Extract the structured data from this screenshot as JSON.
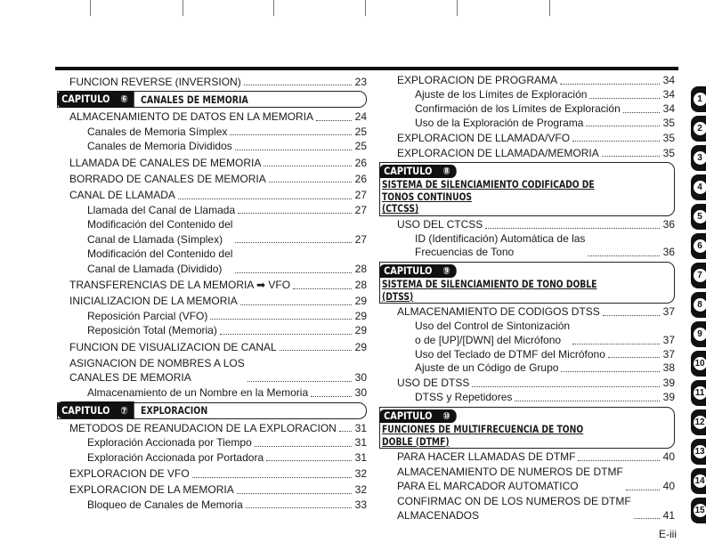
{
  "page_number": "E-iii",
  "chapter_word": "CAPITULO",
  "left": [
    {
      "k": "e",
      "lvl": 1,
      "t": "FUNCION REVERSE (INVERSION)",
      "p": "23"
    },
    {
      "k": "c",
      "n": "⑥",
      "t": "CANALES DE MEMORIA"
    },
    {
      "k": "e",
      "lvl": 1,
      "t": "ALMACENAMIENTO DE DATOS EN LA MEMORIA",
      "p": "24"
    },
    {
      "k": "e",
      "lvl": 2,
      "t": "Canales de Memoria Símplex",
      "p": "25"
    },
    {
      "k": "e",
      "lvl": 2,
      "t": "Canales de Memoria Divididos",
      "p": "25"
    },
    {
      "k": "e",
      "lvl": 1,
      "t": "LLAMADA DE CANALES DE MEMORIA",
      "p": "26"
    },
    {
      "k": "e",
      "lvl": 1,
      "t": "BORRADO DE CANALES DE MEMORIA",
      "p": "26"
    },
    {
      "k": "e",
      "lvl": 1,
      "t": "CANAL DE LLAMADA",
      "p": "27"
    },
    {
      "k": "e",
      "lvl": 2,
      "t": "Llamada del Canal de Llamada",
      "p": "27"
    },
    {
      "k": "e",
      "lvl": 2,
      "t": "Modificación del Contenido del\nCanal de Llamada (Símplex)",
      "p": "27"
    },
    {
      "k": "e",
      "lvl": 2,
      "t": "Modificación del Contenido del\nCanal de Llamada (Dividido)",
      "p": "28"
    },
    {
      "k": "e",
      "lvl": 1,
      "t": "TRANSFERENCIAS DE LA MEMORIA ➡ VFO",
      "p": "28"
    },
    {
      "k": "e",
      "lvl": 1,
      "t": "INICIALIZACION DE LA MEMORIA",
      "p": "29"
    },
    {
      "k": "e",
      "lvl": 2,
      "t": "Reposición Parcial (VFO)",
      "p": "29"
    },
    {
      "k": "e",
      "lvl": 2,
      "t": "Reposición Total (Memoria)",
      "p": "29"
    },
    {
      "k": "e",
      "lvl": 1,
      "t": "FUNCION DE VISUALIZACION DE CANAL",
      "p": "29"
    },
    {
      "k": "e",
      "lvl": 1,
      "t": "ASIGNACION DE NOMBRES A LOS\nCANALES DE MEMORIA",
      "p": "30"
    },
    {
      "k": "e",
      "lvl": 2,
      "t": "Almacenamiento de un Nombre en la Memoria",
      "p": "30"
    },
    {
      "k": "c",
      "n": "⑦",
      "t": "EXPLORACION"
    },
    {
      "k": "e",
      "lvl": 1,
      "t": "METODOS DE REANUDACION DE LA EXPLORACION",
      "p": "31"
    },
    {
      "k": "e",
      "lvl": 2,
      "t": "Exploración Accionada por Tiempo",
      "p": "31"
    },
    {
      "k": "e",
      "lvl": 2,
      "t": "Exploración Accionada por Portadora",
      "p": "31"
    },
    {
      "k": "e",
      "lvl": 1,
      "t": "EXPLORACION DE VFO",
      "p": "32"
    },
    {
      "k": "e",
      "lvl": 1,
      "t": "EXPLORACION DE LA MEMORIA",
      "p": "32"
    },
    {
      "k": "e",
      "lvl": 2,
      "t": "Bloqueo de Canales de Memoria",
      "p": "33"
    }
  ],
  "right": [
    {
      "k": "e",
      "lvl": 1,
      "t": "EXPLORACION DE PROGRAMA",
      "p": "34"
    },
    {
      "k": "e",
      "lvl": 2,
      "t": "Ajuste de los Límites de Exploración",
      "p": "34"
    },
    {
      "k": "e",
      "lvl": 2,
      "t": "Confirmación de los Límites de Exploración",
      "p": "34"
    },
    {
      "k": "e",
      "lvl": 2,
      "t": "Uso de la Exploración de Programa",
      "p": "35"
    },
    {
      "k": "e",
      "lvl": 1,
      "t": "EXPLORACION DE LLAMADA/VFO",
      "p": "35"
    },
    {
      "k": "e",
      "lvl": 1,
      "t": "EXPLORACION DE LLAMADA/MEMORIA",
      "p": "35"
    },
    {
      "k": "b",
      "n": "⑧",
      "t": "SISTEMA DE SILENCIAMIENTO CODIFICADO DE TONOS CONTINUOS\n(CTCSS)"
    },
    {
      "k": "e",
      "lvl": 1,
      "t": "USO DEL CTCSS",
      "p": "36"
    },
    {
      "k": "e",
      "lvl": 2,
      "t": "ID (Identificación) Automática de las\nFrecuencias de Tono",
      "p": "36"
    },
    {
      "k": "b",
      "n": "⑨",
      "t": "SISTEMA DE SILENCIAMIENTO DE TONO DOBLE (DTSS)"
    },
    {
      "k": "e",
      "lvl": 1,
      "t": "ALMACENAMIENTO DE CODIGOS DTSS",
      "p": "37"
    },
    {
      "k": "e",
      "lvl": 2,
      "t": "Uso del Control de Sintonización\no de [UP]/[DWN] del Micrófono",
      "p": "37"
    },
    {
      "k": "e",
      "lvl": 2,
      "t": "Uso del Teclado de DTMF del Micrófono",
      "p": "37"
    },
    {
      "k": "e",
      "lvl": 2,
      "t": "Ajuste de un Código de Grupo",
      "p": "38"
    },
    {
      "k": "e",
      "lvl": 1,
      "t": "USO DE DTSS",
      "p": "39"
    },
    {
      "k": "e",
      "lvl": 2,
      "t": "DTSS y Repetidores",
      "p": "39"
    },
    {
      "k": "b",
      "n": "⑩",
      "t": "FUNCIONES DE MULTIFRECUENCIA DE TONO DOBLE (DTMF)"
    },
    {
      "k": "e",
      "lvl": 1,
      "t": "PARA HACER LLAMADAS DE DTMF",
      "p": "40"
    },
    {
      "k": "e",
      "lvl": 1,
      "t": "ALMACENAMIENTO DE NUMEROS DE DTMF\nPARA EL MARCADOR AUTOMATICO",
      "p": "40"
    },
    {
      "k": "e",
      "lvl": 1,
      "t": "CONFIRMAC ON DE LOS NUMEROS DE DTMF\nALMACENADOS",
      "p": "41"
    }
  ],
  "side_tabs": [
    "1",
    "2",
    "3",
    "4",
    "5",
    "6",
    "7",
    "8",
    "9",
    "10",
    "11",
    "12",
    "13",
    "14",
    "15"
  ]
}
